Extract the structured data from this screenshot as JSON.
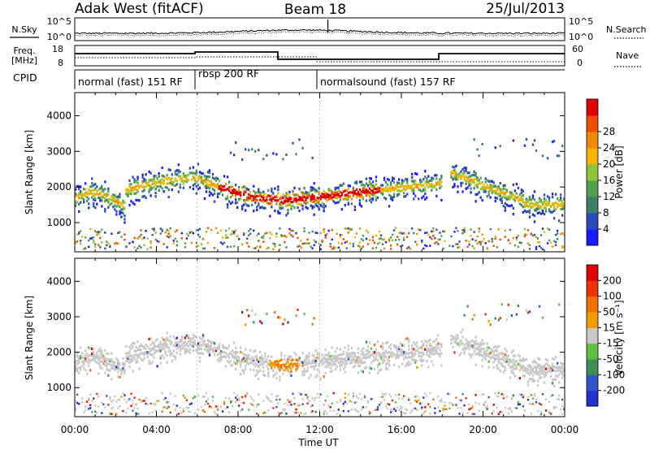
{
  "header": {
    "title_left": "Adak West (fitACF)",
    "title_center": "Beam 18",
    "title_right": "25/Jul/2013"
  },
  "nsky_panel": {
    "label": "N.Sky",
    "tick_top": "10^5",
    "tick_bottom": "10^0",
    "right_tick_top": "10^5",
    "right_tick_bottom": "10^0",
    "right_label": "N.Search"
  },
  "freq_panel": {
    "label_line1": "Freq.",
    "label_line2": "[MHz]",
    "tick_top": "18",
    "tick_bottom": "8",
    "right_tick_top": "60",
    "right_tick_bottom": "0",
    "right_label": "Nave"
  },
  "cpid_panel": {
    "label": "CPID",
    "segments": [
      {
        "label": "normal (fast) 151 RF",
        "start_h": 0,
        "end_h": 6.0
      },
      {
        "label": "rbsp 200 RF",
        "start_h": 6.0,
        "end_h": 12.0
      },
      {
        "label": "normalsound (fast) 157 RF",
        "start_h": 12.0,
        "end_h": 24.0
      }
    ]
  },
  "chart_data": [
    {
      "type": "heatmap",
      "name": "power",
      "xlabel": "",
      "ylabel": "Slant Range [km]",
      "xlim_h": [
        0,
        24
      ],
      "ylim_km": [
        180,
        4650
      ],
      "yticks": [
        1000,
        2000,
        3000,
        4000
      ],
      "colorbar": {
        "label": "Power [dB]",
        "ticks": [
          "4",
          "8",
          "12",
          "16",
          "20",
          "24",
          "28"
        ],
        "colors": [
          "#1a1aff",
          "#2b4bb8",
          "#3f7f6a",
          "#4fa050",
          "#8fc43a",
          "#f4b400",
          "#f08a00",
          "#ee4d00",
          "#e00000"
        ]
      }
    },
    {
      "type": "heatmap",
      "name": "velocity",
      "xlabel": "Time UT",
      "ylabel": "Slant Range [km]",
      "xlim_h": [
        0,
        24
      ],
      "ylim_km": [
        180,
        4650
      ],
      "yticks": [
        1000,
        2000,
        3000,
        4000
      ],
      "xticks": [
        "00:00",
        "04:00",
        "08:00",
        "12:00",
        "16:00",
        "20:00",
        "00:00"
      ],
      "colorbar": {
        "label": "Velocity [m s⁻¹]",
        "ticks": [
          "200",
          "100",
          "50",
          "15",
          "-15",
          "-50",
          "-100",
          "-200"
        ],
        "colors": [
          "#2233cc",
          "#3355cc",
          "#3f8f55",
          "#5cc040",
          "#c8c8c8",
          "#f09b00",
          "#f07000",
          "#ee3300",
          "#e00000"
        ]
      }
    }
  ]
}
